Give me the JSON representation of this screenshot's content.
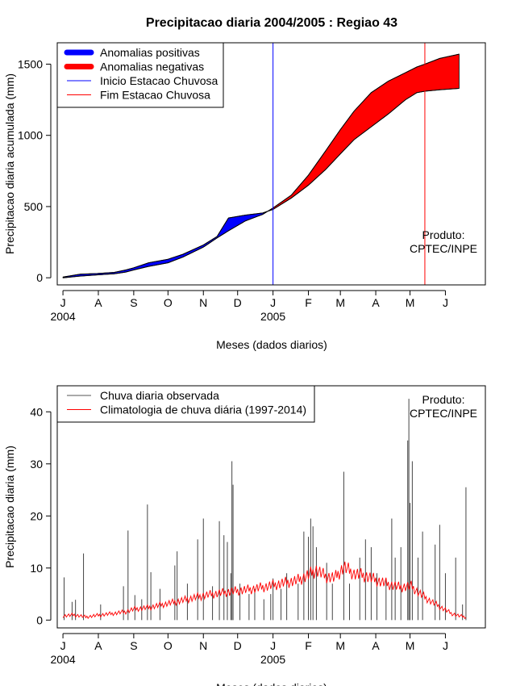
{
  "title": "Precipitacao diaria 2004/2005 : Regiao 43",
  "chart_data": [
    {
      "type": "area",
      "name": "accumulated",
      "ylabel": "Precipitacao diaria acumulada (mm)",
      "xlabel": "Meses (dados diarios)",
      "ylim": [
        -50,
        1650
      ],
      "yticks": [
        0,
        500,
        1000,
        1500
      ],
      "x_unit": "days since 1 Jul 2004",
      "xlim": [
        -5,
        370
      ],
      "month_ticks": {
        "days": [
          0,
          31,
          62,
          92,
          123,
          153,
          184,
          215,
          243,
          274,
          304,
          335
        ],
        "labels": [
          "J",
          "A",
          "S",
          "O",
          "N",
          "D",
          "J",
          "F",
          "M",
          "A",
          "M",
          "J"
        ]
      },
      "year_labels": [
        {
          "day": 0,
          "label": "2004"
        },
        {
          "day": 184,
          "label": "2005"
        }
      ],
      "legend": [
        {
          "label": "Anomalias positivas",
          "color": "#0000ff",
          "kind": "thick"
        },
        {
          "label": "Anomalias negativas",
          "color": "#ff0000",
          "kind": "thick"
        },
        {
          "label": "Inicio Estacao Chuvosa",
          "color": "#0000ff",
          "kind": "line"
        },
        {
          "label": "Fim Estacao Chuvosa",
          "color": "#ff0000",
          "kind": "line"
        }
      ],
      "note": [
        "Produto:",
        "CPTEC/INPE"
      ],
      "season_start_day": 184,
      "season_end_day": 317,
      "observed": [
        [
          0,
          5
        ],
        [
          15,
          25
        ],
        [
          30,
          30
        ],
        [
          45,
          38
        ],
        [
          55,
          55
        ],
        [
          62,
          70
        ],
        [
          75,
          105
        ],
        [
          92,
          130
        ],
        [
          105,
          165
        ],
        [
          123,
          230
        ],
        [
          135,
          290
        ],
        [
          145,
          420
        ],
        [
          160,
          440
        ],
        [
          175,
          455
        ],
        [
          184,
          480
        ],
        [
          200,
          560
        ],
        [
          215,
          650
        ],
        [
          230,
          760
        ],
        [
          243,
          870
        ],
        [
          255,
          970
        ],
        [
          270,
          1060
        ],
        [
          285,
          1150
        ],
        [
          300,
          1250
        ],
        [
          310,
          1300
        ],
        [
          317,
          1310
        ],
        [
          330,
          1320
        ],
        [
          347,
          1330
        ]
      ],
      "climatology": [
        [
          0,
          0
        ],
        [
          15,
          12
        ],
        [
          30,
          20
        ],
        [
          45,
          28
        ],
        [
          55,
          40
        ],
        [
          62,
          55
        ],
        [
          75,
          80
        ],
        [
          92,
          105
        ],
        [
          105,
          145
        ],
        [
          123,
          215
        ],
        [
          135,
          280
        ],
        [
          145,
          330
        ],
        [
          160,
          400
        ],
        [
          175,
          445
        ],
        [
          184,
          490
        ],
        [
          200,
          580
        ],
        [
          215,
          720
        ],
        [
          230,
          890
        ],
        [
          243,
          1040
        ],
        [
          255,
          1170
        ],
        [
          270,
          1300
        ],
        [
          285,
          1380
        ],
        [
          300,
          1440
        ],
        [
          310,
          1480
        ],
        [
          317,
          1500
        ],
        [
          330,
          1540
        ],
        [
          347,
          1570
        ]
      ]
    },
    {
      "type": "line",
      "name": "daily",
      "ylabel": "Precipitacao diaria (mm)",
      "xlabel": "Meses (dados diarios)",
      "ylim": [
        -1.5,
        45
      ],
      "yticks": [
        0,
        10,
        20,
        30,
        40
      ],
      "x_unit": "days since 1 Jul 2004",
      "xlim": [
        -5,
        370
      ],
      "month_ticks": {
        "days": [
          0,
          31,
          62,
          92,
          123,
          153,
          184,
          215,
          243,
          274,
          304,
          335
        ],
        "labels": [
          "J",
          "A",
          "S",
          "O",
          "N",
          "D",
          "J",
          "F",
          "M",
          "A",
          "M",
          "J"
        ]
      },
      "year_labels": [
        {
          "day": 0,
          "label": "2004"
        },
        {
          "day": 184,
          "label": "2005"
        }
      ],
      "legend": [
        {
          "label": "Chuva diaria observada",
          "color": "#555555",
          "kind": "line"
        },
        {
          "label": "Climatologia de chuva diária (1997-2014)",
          "color": "#ff0000",
          "kind": "line"
        }
      ],
      "note": [
        "Produto:",
        "CPTEC/INPE"
      ],
      "observed_spikes": [
        [
          1,
          8.2
        ],
        [
          8,
          3.5
        ],
        [
          11,
          3.9
        ],
        [
          18,
          12.8
        ],
        [
          33,
          3
        ],
        [
          53,
          6.5
        ],
        [
          57,
          17.2
        ],
        [
          63,
          4.8
        ],
        [
          69,
          4
        ],
        [
          74,
          22.2
        ],
        [
          77,
          9.2
        ],
        [
          85,
          6
        ],
        [
          98,
          10.5
        ],
        [
          100,
          13.2
        ],
        [
          109,
          7
        ],
        [
          118,
          15.5
        ],
        [
          123,
          19.5
        ],
        [
          131,
          6.5
        ],
        [
          137,
          19
        ],
        [
          141,
          16.3
        ],
        [
          144,
          15
        ],
        [
          147,
          9
        ],
        [
          148,
          30.5
        ],
        [
          149,
          26
        ],
        [
          155,
          7
        ],
        [
          163,
          5
        ],
        [
          168,
          6
        ],
        [
          176,
          4
        ],
        [
          182,
          5
        ],
        [
          184,
          8
        ],
        [
          191,
          6
        ],
        [
          196,
          9
        ],
        [
          206,
          7
        ],
        [
          211,
          17
        ],
        [
          215,
          16
        ],
        [
          217,
          19.5
        ],
        [
          219,
          18
        ],
        [
          222,
          14
        ],
        [
          231,
          11
        ],
        [
          236,
          7
        ],
        [
          246,
          28.5
        ],
        [
          251,
          7
        ],
        [
          260,
          12
        ],
        [
          265,
          15.5
        ],
        [
          270,
          14
        ],
        [
          275,
          9
        ],
        [
          283,
          8
        ],
        [
          288,
          19.5
        ],
        [
          291,
          12
        ],
        [
          296,
          14
        ],
        [
          302,
          34.5
        ],
        [
          303,
          42.5
        ],
        [
          304,
          22.5
        ],
        [
          306,
          30.5
        ],
        [
          311,
          12
        ],
        [
          315,
          17
        ],
        [
          326,
          14.5
        ],
        [
          330,
          18.3
        ],
        [
          335,
          9
        ],
        [
          344,
          12
        ],
        [
          350,
          3
        ],
        [
          353,
          25.5
        ]
      ],
      "climatology_line": [
        [
          0,
          0.8
        ],
        [
          10,
          1
        ],
        [
          20,
          0.6
        ],
        [
          30,
          0.9
        ],
        [
          45,
          1.3
        ],
        [
          55,
          1.6
        ],
        [
          62,
          2.1
        ],
        [
          75,
          2.4
        ],
        [
          92,
          3.2
        ],
        [
          105,
          3.8
        ],
        [
          115,
          4.3
        ],
        [
          123,
          4.7
        ],
        [
          135,
          5.1
        ],
        [
          145,
          5.4
        ],
        [
          160,
          5.8
        ],
        [
          170,
          6.1
        ],
        [
          184,
          6.7
        ],
        [
          195,
          7.2
        ],
        [
          205,
          7.6
        ],
        [
          213,
          8.4
        ],
        [
          222,
          9.6
        ],
        [
          230,
          8.4
        ],
        [
          238,
          8.1
        ],
        [
          246,
          10.2
        ],
        [
          255,
          8.9
        ],
        [
          265,
          8.5
        ],
        [
          275,
          7.6
        ],
        [
          285,
          6.9
        ],
        [
          295,
          6.3
        ],
        [
          305,
          6.5
        ],
        [
          312,
          5.2
        ],
        [
          320,
          3.9
        ],
        [
          330,
          2.6
        ],
        [
          340,
          1.3
        ],
        [
          347,
          0.8
        ],
        [
          353,
          0.6
        ]
      ]
    }
  ]
}
